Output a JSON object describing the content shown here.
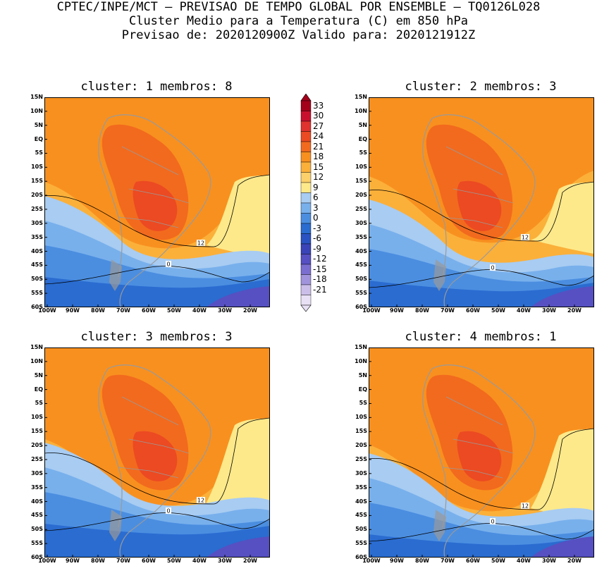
{
  "header": {
    "line1": "CPTEC/INPE/MCT – PREVISAO DE TEMPO GLOBAL POR ENSEMBLE – TQ0126L028",
    "line2": "Cluster Medio para a Temperatura (C) em 850 hPa",
    "line3": "Previsao de: 2020120900Z   Valido para: 2020121912Z"
  },
  "panels": [
    {
      "title": "cluster: 1   membros: 8"
    },
    {
      "title": "cluster: 2   membros: 3"
    },
    {
      "title": "cluster: 3   membros: 3"
    },
    {
      "title": "cluster: 4   membros: 1"
    }
  ],
  "lat_ticks": [
    "15N",
    "10N",
    "5N",
    "EQ",
    "5S",
    "10S",
    "15S",
    "20S",
    "25S",
    "30S",
    "35S",
    "40S",
    "45S",
    "50S",
    "55S",
    "60S"
  ],
  "lon_ticks": [
    "100W",
    "90W",
    "80W",
    "70W",
    "60W",
    "50W",
    "40W",
    "30W",
    "20W"
  ],
  "contour_labels": [
    "12",
    "0"
  ],
  "colorbar": {
    "labels": [
      "33",
      "30",
      "27",
      "24",
      "21",
      "18",
      "15",
      "12",
      "9",
      "6",
      "3",
      "0",
      "-3",
      "-6",
      "-9",
      "-12",
      "-15",
      "-18",
      "-21"
    ],
    "colors": [
      "#a3001a",
      "#c8102e",
      "#e0322e",
      "#ec4a22",
      "#f26a1e",
      "#f8901f",
      "#fbb03a",
      "#fcd06a",
      "#fde98a",
      "#a8ccf2",
      "#78b0ec",
      "#4b8ee0",
      "#2a6cd0",
      "#2a52c2",
      "#3a44b8",
      "#5650c2",
      "#7a6ed0",
      "#a194dc",
      "#cbbfea",
      "#e8e0f5"
    ]
  },
  "palette": {
    "warm_hi": "#ec4a22",
    "warm_mid": "#f26a1e",
    "orange": "#f8901f",
    "light_orange": "#fbb03a",
    "yellow": "#fde98a",
    "light_blue": "#a8ccf2",
    "blue": "#78b0ec",
    "mid_blue": "#4b8ee0",
    "deep_blue": "#2a6cd0",
    "purple": "#5650c2",
    "land_outline": "#9a9a9a"
  }
}
